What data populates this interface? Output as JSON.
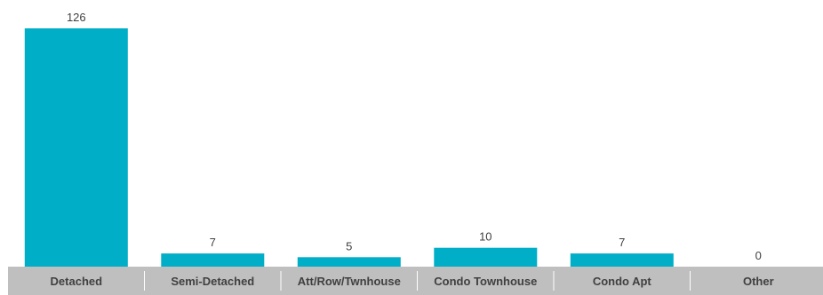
{
  "chart_data": {
    "type": "bar",
    "categories": [
      "Detached",
      "Semi-Detached",
      "Att/Row/Twnhouse",
      "Condo Townhouse",
      "Condo Apt",
      "Other"
    ],
    "values": [
      126,
      7,
      5,
      10,
      7,
      0
    ],
    "title": "",
    "xlabel": "",
    "ylabel": "",
    "ylim": [
      0,
      126
    ],
    "grid": false,
    "legend": "none",
    "data_labels": true
  },
  "colors": {
    "bar": "#00AEC7",
    "axis_band": "#BFBFBF",
    "separator": "#FFFFFF",
    "text": "#404040",
    "background": "#FFFFFF"
  }
}
